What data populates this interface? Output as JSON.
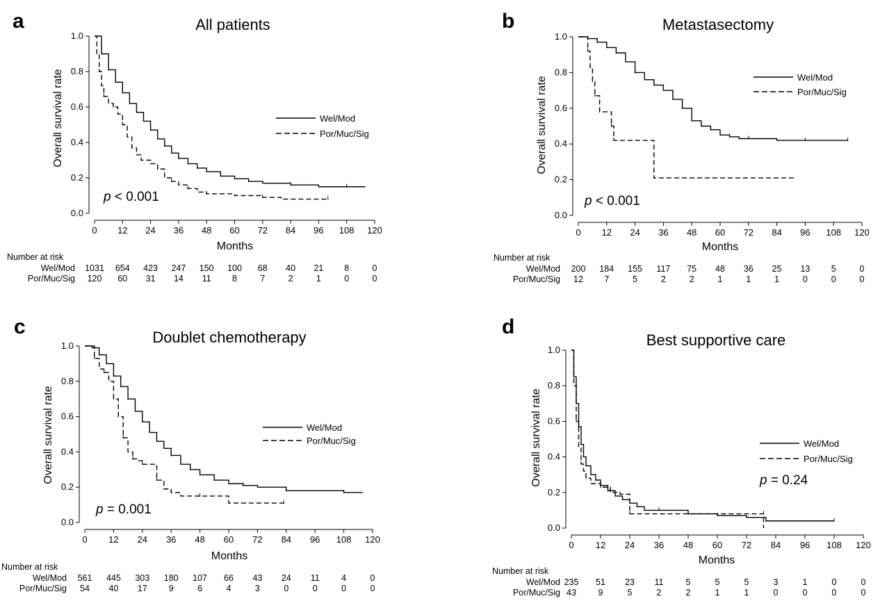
{
  "chart_data": [
    {
      "type": "line",
      "panel": "a",
      "title": "All patients",
      "xlabel": "Months",
      "ylabel": "Overall survival rate",
      "xlim": [
        0,
        120
      ],
      "ylim": [
        0,
        1.0
      ],
      "x_ticks": [
        0,
        12,
        24,
        36,
        48,
        60,
        72,
        84,
        96,
        108,
        120
      ],
      "y_ticks": [
        "0.0",
        "0.2",
        "0.4",
        "0.6",
        "0.8",
        "1.0"
      ],
      "legend_position": "center-right",
      "p_value": {
        "prefix": "p",
        "text": " < 0.001"
      },
      "series": [
        {
          "name": "Wel/Mod",
          "style": "solid",
          "points": [
            [
              0,
              1.0
            ],
            [
              3,
              0.9
            ],
            [
              6,
              0.81
            ],
            [
              9,
              0.74
            ],
            [
              12,
              0.68
            ],
            [
              15,
              0.62
            ],
            [
              18,
              0.57
            ],
            [
              21,
              0.52
            ],
            [
              24,
              0.47
            ],
            [
              27,
              0.42
            ],
            [
              30,
              0.38
            ],
            [
              33,
              0.34
            ],
            [
              36,
              0.31
            ],
            [
              40,
              0.28
            ],
            [
              44,
              0.255
            ],
            [
              48,
              0.235
            ],
            [
              54,
              0.21
            ],
            [
              60,
              0.195
            ],
            [
              66,
              0.18
            ],
            [
              72,
              0.17
            ],
            [
              84,
              0.16
            ],
            [
              96,
              0.15
            ],
            [
              108,
              0.15
            ],
            [
              116,
              0.15
            ]
          ]
        },
        {
          "name": "Por/Muc/Sig",
          "style": "dashed",
          "points": [
            [
              0,
              1.0
            ],
            [
              1,
              0.9
            ],
            [
              2,
              0.8
            ],
            [
              3,
              0.72
            ],
            [
              4,
              0.66
            ],
            [
              6,
              0.62
            ],
            [
              8,
              0.6
            ],
            [
              10,
              0.56
            ],
            [
              12,
              0.5
            ],
            [
              14,
              0.43
            ],
            [
              16,
              0.37
            ],
            [
              18,
              0.33
            ],
            [
              20,
              0.3
            ],
            [
              24,
              0.28
            ],
            [
              27,
              0.25
            ],
            [
              30,
              0.2
            ],
            [
              33,
              0.18
            ],
            [
              36,
              0.16
            ],
            [
              40,
              0.14
            ],
            [
              44,
              0.12
            ],
            [
              48,
              0.11
            ],
            [
              60,
              0.1
            ],
            [
              72,
              0.09
            ],
            [
              80,
              0.08
            ],
            [
              100,
              0.08
            ]
          ]
        }
      ],
      "risk_table": {
        "header": "Number at risk",
        "rows": [
          {
            "label": "Wel/Mod",
            "values": [
              "1031",
              "654",
              "423",
              "247",
              "150",
              "100",
              "68",
              "40",
              "21",
              "8",
              "0"
            ]
          },
          {
            "label": "Por/Muc/Sig",
            "values": [
              "120",
              "60",
              "31",
              "14",
              "11",
              "8",
              "7",
              "2",
              "1",
              "0",
              "0"
            ]
          }
        ]
      }
    },
    {
      "type": "line",
      "panel": "b",
      "title": "Metastasectomy",
      "xlabel": "Months",
      "ylabel": "Overall survival rate",
      "xlim": [
        0,
        120
      ],
      "ylim": [
        0,
        1.0
      ],
      "x_ticks": [
        0,
        12,
        24,
        36,
        48,
        60,
        72,
        84,
        96,
        108,
        120
      ],
      "y_ticks": [
        "0.0",
        "0.2",
        "0.4",
        "0.6",
        "0.8",
        "1.0"
      ],
      "legend_position": "top-right",
      "p_value": {
        "prefix": "p",
        "text": " < 0.001"
      },
      "series": [
        {
          "name": "Wel/Mod",
          "style": "solid",
          "points": [
            [
              0,
              1.0
            ],
            [
              4,
              0.99
            ],
            [
              8,
              0.97
            ],
            [
              12,
              0.94
            ],
            [
              16,
              0.91
            ],
            [
              20,
              0.86
            ],
            [
              24,
              0.8
            ],
            [
              28,
              0.76
            ],
            [
              32,
              0.73
            ],
            [
              36,
              0.7
            ],
            [
              40,
              0.65
            ],
            [
              44,
              0.6
            ],
            [
              48,
              0.53
            ],
            [
              52,
              0.5
            ],
            [
              56,
              0.48
            ],
            [
              60,
              0.45
            ],
            [
              64,
              0.44
            ],
            [
              68,
              0.43
            ],
            [
              72,
              0.43
            ],
            [
              84,
              0.42
            ],
            [
              96,
              0.42
            ],
            [
              108,
              0.42
            ],
            [
              114,
              0.42
            ]
          ]
        },
        {
          "name": "Por/Muc/Sig",
          "style": "dashed",
          "points": [
            [
              0,
              1.0
            ],
            [
              4,
              1.0
            ],
            [
              4,
              0.92
            ],
            [
              5,
              0.92
            ],
            [
              5,
              0.83
            ],
            [
              6,
              0.83
            ],
            [
              6,
              0.75
            ],
            [
              7,
              0.75
            ],
            [
              7,
              0.67
            ],
            [
              9,
              0.67
            ],
            [
              9,
              0.58
            ],
            [
              14,
              0.58
            ],
            [
              14,
              0.5
            ],
            [
              15,
              0.5
            ],
            [
              15,
              0.42
            ],
            [
              32,
              0.42
            ],
            [
              32,
              0.21
            ],
            [
              92,
              0.21
            ]
          ]
        }
      ],
      "risk_table": {
        "header": "Number at risk",
        "rows": [
          {
            "label": "Wel/Mod",
            "values": [
              "200",
              "184",
              "155",
              "117",
              "75",
              "48",
              "36",
              "25",
              "13",
              "5",
              "0"
            ]
          },
          {
            "label": "Por/Muc/Sig",
            "values": [
              "12",
              "7",
              "5",
              "2",
              "2",
              "1",
              "1",
              "1",
              "0",
              "0",
              "0"
            ]
          }
        ]
      }
    },
    {
      "type": "line",
      "panel": "c",
      "title": "Doublet chemotherapy",
      "xlabel": "Months",
      "ylabel": "Overall survival rate",
      "xlim": [
        0,
        120
      ],
      "ylim": [
        0,
        1.0
      ],
      "x_ticks": [
        0,
        12,
        24,
        36,
        48,
        60,
        72,
        84,
        96,
        108,
        120
      ],
      "y_ticks": [
        "0.0",
        "0.2",
        "0.4",
        "0.6",
        "0.8",
        "1.0"
      ],
      "legend_position": "center-right",
      "p_value": {
        "prefix": "p",
        "text": " = 0.001"
      },
      "series": [
        {
          "name": "Wel/Mod",
          "style": "solid",
          "points": [
            [
              0,
              1.0
            ],
            [
              3,
              0.99
            ],
            [
              6,
              0.95
            ],
            [
              9,
              0.9
            ],
            [
              12,
              0.83
            ],
            [
              15,
              0.77
            ],
            [
              18,
              0.7
            ],
            [
              21,
              0.63
            ],
            [
              24,
              0.57
            ],
            [
              27,
              0.51
            ],
            [
              30,
              0.46
            ],
            [
              33,
              0.42
            ],
            [
              36,
              0.38
            ],
            [
              40,
              0.33
            ],
            [
              44,
              0.3
            ],
            [
              48,
              0.27
            ],
            [
              54,
              0.24
            ],
            [
              60,
              0.22
            ],
            [
              66,
              0.21
            ],
            [
              72,
              0.2
            ],
            [
              84,
              0.18
            ],
            [
              96,
              0.18
            ],
            [
              108,
              0.17
            ],
            [
              116,
              0.17
            ]
          ]
        },
        {
          "name": "Por/Muc/Sig",
          "style": "dashed",
          "points": [
            [
              0,
              1.0
            ],
            [
              2,
              1.0
            ],
            [
              4,
              0.93
            ],
            [
              6,
              0.87
            ],
            [
              8,
              0.85
            ],
            [
              10,
              0.8
            ],
            [
              12,
              0.7
            ],
            [
              14,
              0.6
            ],
            [
              16,
              0.48
            ],
            [
              18,
              0.4
            ],
            [
              20,
              0.36
            ],
            [
              22,
              0.35
            ],
            [
              24,
              0.33
            ],
            [
              30,
              0.33
            ],
            [
              30,
              0.24
            ],
            [
              33,
              0.19
            ],
            [
              36,
              0.17
            ],
            [
              40,
              0.15
            ],
            [
              48,
              0.15
            ],
            [
              60,
              0.15
            ],
            [
              60,
              0.11
            ],
            [
              72,
              0.11
            ],
            [
              83,
              0.11
            ]
          ]
        }
      ],
      "risk_table": {
        "header": "Number at risk",
        "rows": [
          {
            "label": "Wel/Mod",
            "values": [
              "561",
              "445",
              "303",
              "180",
              "107",
              "66",
              "43",
              "24",
              "11",
              "4",
              "0"
            ]
          },
          {
            "label": "Por/Muc/Sig",
            "values": [
              "54",
              "40",
              "17",
              "9",
              "6",
              "4",
              "3",
              "0",
              "0",
              "0",
              "0"
            ]
          }
        ]
      }
    },
    {
      "type": "line",
      "panel": "d",
      "title": "Best supportive care",
      "xlabel": "Months",
      "ylabel": "Overall survival rate",
      "xlim": [
        0,
        120
      ],
      "ylim": [
        0,
        1.0
      ],
      "x_ticks": [
        0,
        12,
        24,
        36,
        48,
        60,
        72,
        84,
        96,
        108,
        120
      ],
      "y_ticks": [
        "0.0",
        "0.2",
        "0.4",
        "0.6",
        "0.8",
        "1.0"
      ],
      "legend_position": "center-right",
      "p_value": {
        "prefix": "p",
        "text": " = 0.24"
      },
      "series": [
        {
          "name": "Wel/Mod",
          "style": "solid",
          "points": [
            [
              0,
              1.0
            ],
            [
              1,
              0.85
            ],
            [
              2,
              0.7
            ],
            [
              3,
              0.57
            ],
            [
              4,
              0.47
            ],
            [
              5,
              0.4
            ],
            [
              6,
              0.35
            ],
            [
              8,
              0.3
            ],
            [
              10,
              0.27
            ],
            [
              12,
              0.24
            ],
            [
              15,
              0.21
            ],
            [
              18,
              0.18
            ],
            [
              21,
              0.16
            ],
            [
              24,
              0.14
            ],
            [
              27,
              0.12
            ],
            [
              30,
              0.1
            ],
            [
              36,
              0.1
            ],
            [
              48,
              0.08
            ],
            [
              60,
              0.07
            ],
            [
              72,
              0.06
            ],
            [
              80,
              0.04
            ],
            [
              96,
              0.04
            ],
            [
              108,
              0.04
            ]
          ]
        },
        {
          "name": "Por/Muc/Sig",
          "style": "dashed",
          "points": [
            [
              0,
              1.0
            ],
            [
              1,
              0.8
            ],
            [
              2,
              0.6
            ],
            [
              3,
              0.45
            ],
            [
              4,
              0.36
            ],
            [
              5,
              0.32
            ],
            [
              6,
              0.28
            ],
            [
              8,
              0.25
            ],
            [
              12,
              0.23
            ],
            [
              16,
              0.2
            ],
            [
              20,
              0.19
            ],
            [
              24,
              0.19
            ],
            [
              24,
              0.08
            ],
            [
              36,
              0.08
            ],
            [
              48,
              0.08
            ],
            [
              60,
              0.08
            ],
            [
              79,
              0.08
            ],
            [
              79,
              0.0
            ]
          ]
        }
      ],
      "risk_table": {
        "header": "Number at risk",
        "rows": [
          {
            "label": "Wel/Mod",
            "values": [
              "235",
              "51",
              "23",
              "11",
              "5",
              "5",
              "5",
              "3",
              "1",
              "0",
              "0"
            ]
          },
          {
            "label": "Por/Muc/Sig",
            "values": [
              "43",
              "9",
              "5",
              "2",
              "2",
              "1",
              "1",
              "0",
              "0",
              "0",
              "0"
            ]
          }
        ]
      }
    }
  ]
}
